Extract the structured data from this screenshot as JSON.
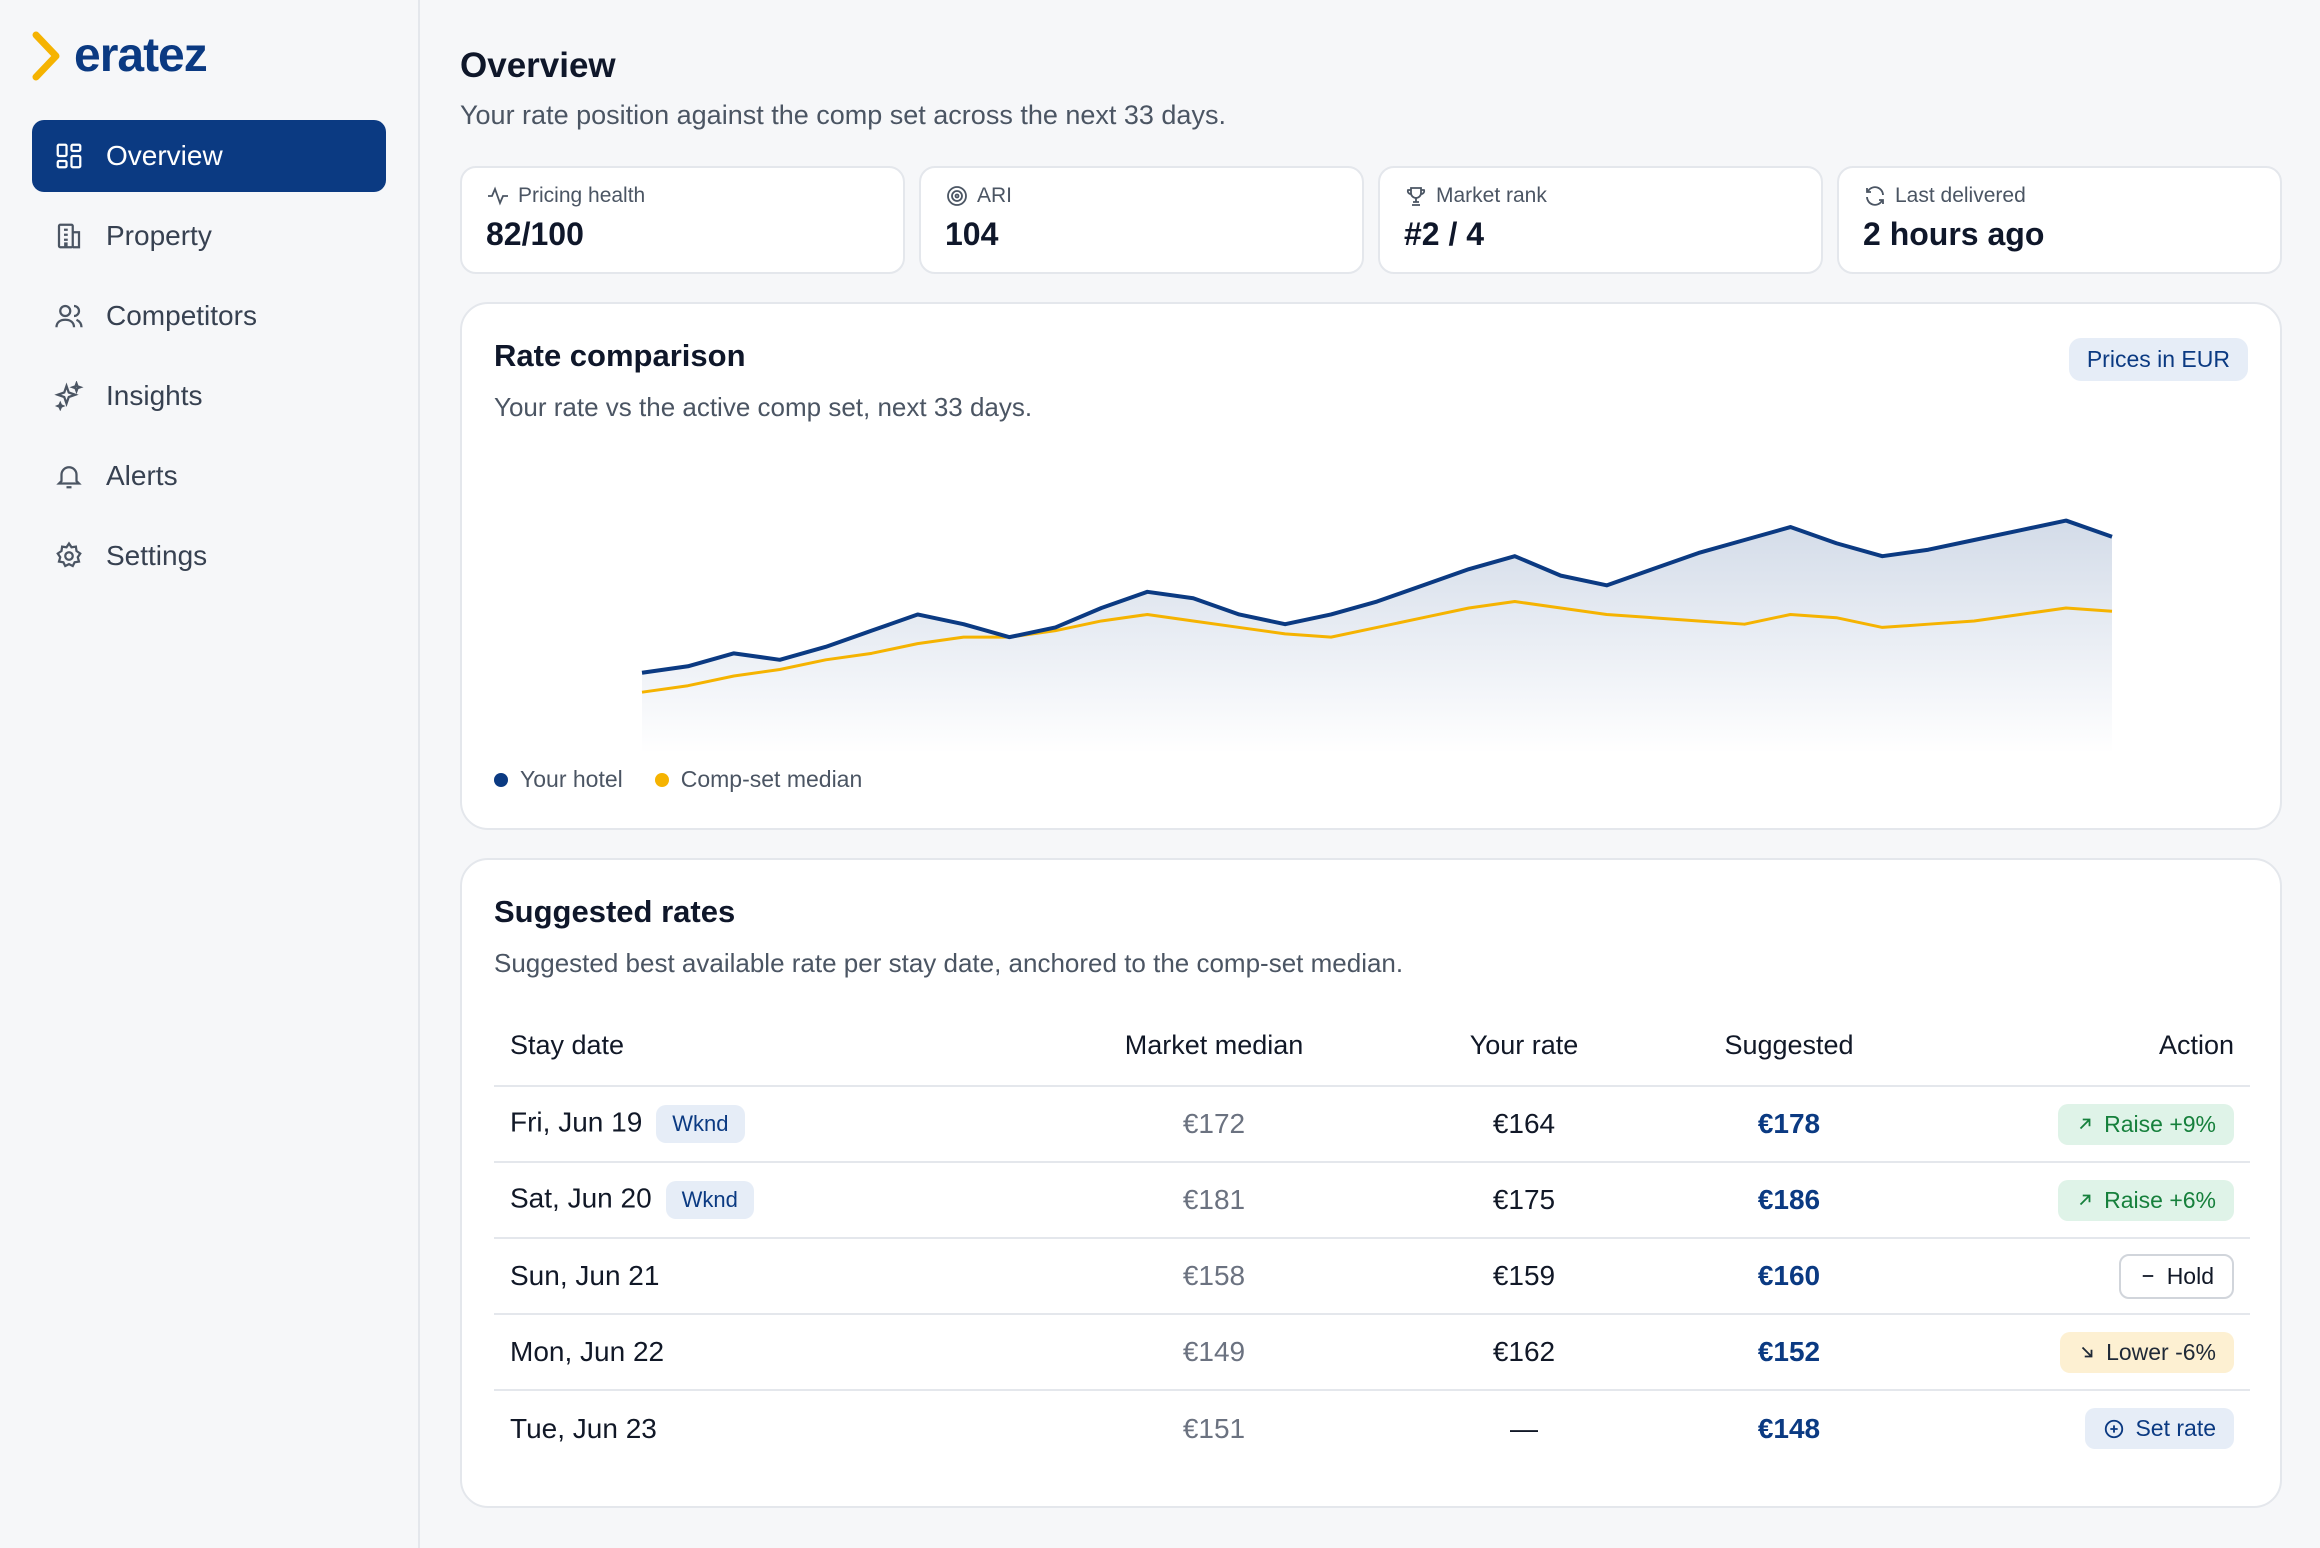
{
  "brand": {
    "name": "eratez",
    "accent": "#0b3a82",
    "chevron_color": "#f5b301"
  },
  "sidebar": {
    "items": [
      {
        "label": "Overview",
        "icon": "grid-icon",
        "active": true
      },
      {
        "label": "Property",
        "icon": "building-icon"
      },
      {
        "label": "Competitors",
        "icon": "users-icon"
      },
      {
        "label": "Insights",
        "icon": "sparkles-icon"
      },
      {
        "label": "Alerts",
        "icon": "bell-icon"
      },
      {
        "label": "Settings",
        "icon": "gear-icon"
      }
    ]
  },
  "header": {
    "title": "Overview",
    "subtitle": "Your rate position against the comp set across the next 33 days."
  },
  "stats": [
    {
      "label": "Pricing health",
      "value": "82/100",
      "icon": "activity-icon"
    },
    {
      "label": "ARI",
      "value": "104",
      "icon": "target-icon"
    },
    {
      "label": "Market rank",
      "value": "#2 / 4",
      "icon": "trophy-icon"
    },
    {
      "label": "Last delivered",
      "value": "2 hours ago",
      "icon": "refresh-icon"
    }
  ],
  "rate_comparison": {
    "title": "Rate comparison",
    "subtitle": "Your rate vs the active comp set, next 33 days.",
    "badge": "Prices in EUR"
  },
  "chart_data": {
    "type": "line",
    "x": [
      1,
      2,
      3,
      4,
      5,
      6,
      7,
      8,
      9,
      10,
      11,
      12,
      13,
      14,
      15,
      16,
      17,
      18,
      19,
      20,
      21,
      22,
      23,
      24,
      25,
      26,
      27,
      28,
      29,
      30,
      31,
      32,
      33
    ],
    "ylim": [
      110,
      215
    ],
    "grid": false,
    "legend_position": "bottom-left",
    "series": [
      {
        "name": "Your hotel",
        "color": "#0b3a82",
        "values": [
          132,
          134,
          138,
          136,
          140,
          145,
          150,
          147,
          143,
          146,
          152,
          157,
          155,
          150,
          147,
          150,
          154,
          159,
          164,
          168,
          162,
          159,
          164,
          169,
          173,
          177,
          172,
          168,
          170,
          173,
          176,
          179,
          174
        ]
      },
      {
        "name": "Comp-set median",
        "color": "#f5b301",
        "values": [
          126,
          128,
          131,
          133,
          136,
          138,
          141,
          143,
          143,
          145,
          148,
          150,
          148,
          146,
          144,
          143,
          146,
          149,
          152,
          154,
          152,
          150,
          149,
          148,
          147,
          150,
          149,
          146,
          147,
          148,
          150,
          152,
          151
        ]
      }
    ]
  },
  "suggested_rates": {
    "title": "Suggested rates",
    "subtitle": "Suggested best available rate per stay date, anchored to the comp-set median.",
    "columns": [
      "Stay date",
      "Market median",
      "Your rate",
      "Suggested",
      "Action"
    ],
    "rows": [
      {
        "date": "Fri, Jun 19",
        "tag": "Wknd",
        "median": "€172",
        "rate": "€164",
        "suggested": "€178",
        "action": "Raise +9%",
        "action_type": "raise",
        "action_icon": "arrow-up-right-icon"
      },
      {
        "date": "Sat, Jun 20",
        "tag": "Wknd",
        "median": "€181",
        "rate": "€175",
        "suggested": "€186",
        "action": "Raise +6%",
        "action_type": "raise",
        "action_icon": "arrow-up-right-icon"
      },
      {
        "date": "Sun, Jun 21",
        "tag": "",
        "median": "€158",
        "rate": "€159",
        "suggested": "€160",
        "action": "Hold",
        "action_type": "hold",
        "action_icon": "minus-icon"
      },
      {
        "date": "Mon, Jun 22",
        "tag": "",
        "median": "€149",
        "rate": "€162",
        "suggested": "€152",
        "action": "Lower -6%",
        "action_type": "lower",
        "action_icon": "arrow-down-right-icon"
      },
      {
        "date": "Tue, Jun 23",
        "tag": "",
        "median": "€151",
        "rate": "—",
        "suggested": "€148",
        "action": "Set rate",
        "action_type": "set",
        "action_icon": "plus-circle-icon"
      }
    ]
  }
}
